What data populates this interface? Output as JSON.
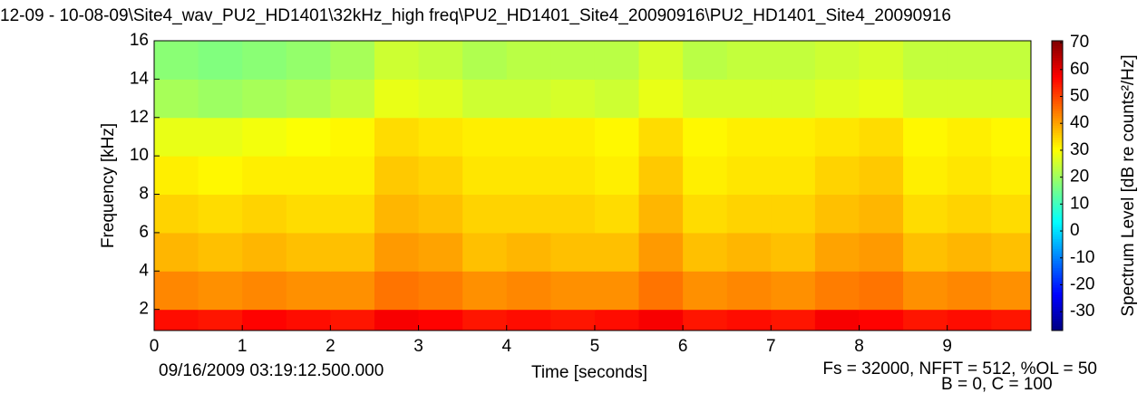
{
  "chart_data": {
    "type": "heatmap",
    "title": "12-09 - 10-08-09\\Site4_wav_PU2_HD1401\\32kHz_high freq\\PU2_HD1401_Site4_20090916\\PU2_HD1401_Site4_20090916",
    "xlabel": "Time [seconds]",
    "ylabel": "Frequency [kHz]",
    "colorbar_label": "Spectrum Level [dB re counts²/Hz]",
    "start_time": "09/16/2009 03:19:12.500.000",
    "params": "Fs = 32000, NFFT = 512, %OL = 50",
    "params2": "B = 0, C = 100",
    "xlim": [
      0,
      9.95
    ],
    "ylim": [
      0.9,
      16
    ],
    "clim": [
      -37,
      70.7
    ],
    "xticks": [
      0,
      1,
      2,
      3,
      4,
      5,
      6,
      7,
      8,
      9
    ],
    "yticks": [
      2,
      4,
      6,
      8,
      10,
      12,
      14,
      16
    ],
    "cticks": [
      -30,
      -20,
      -10,
      0,
      10,
      20,
      30,
      40,
      50,
      60,
      70
    ],
    "x_edges": [
      0,
      0.5,
      1,
      1.5,
      2,
      2.5,
      3,
      3.5,
      4,
      4.5,
      5,
      5.5,
      6,
      6.5,
      7,
      7.5,
      8,
      8.5,
      9,
      9.5,
      9.95
    ],
    "y_edges": [
      0.9,
      2,
      4,
      6,
      8,
      10,
      12,
      14,
      16
    ],
    "colormap": "jet",
    "z": [
      [
        56,
        55,
        57,
        56,
        55,
        58,
        57,
        55,
        56,
        55,
        56,
        58,
        55,
        56,
        55,
        58,
        57,
        55,
        56,
        55
      ],
      [
        43,
        42,
        43,
        42,
        42,
        45,
        44,
        42,
        43,
        42,
        42,
        45,
        42,
        43,
        42,
        44,
        45,
        42,
        43,
        42
      ],
      [
        38,
        37,
        38,
        37,
        37,
        41,
        40,
        37,
        38,
        37,
        37,
        41,
        37,
        38,
        37,
        40,
        41,
        37,
        38,
        37
      ],
      [
        35,
        34,
        35,
        34,
        34,
        38,
        37,
        35,
        35,
        35,
        34,
        38,
        34,
        35,
        35,
        37,
        38,
        34,
        35,
        34
      ],
      [
        32,
        31,
        32,
        32,
        32,
        36,
        35,
        33,
        33,
        33,
        32,
        36,
        32,
        33,
        33,
        35,
        36,
        32,
        33,
        32
      ],
      [
        28,
        28,
        29,
        30,
        31,
        34,
        33,
        32,
        32,
        32,
        31,
        34,
        31,
        32,
        32,
        33,
        34,
        31,
        32,
        31
      ],
      [
        21,
        20,
        21,
        22,
        24,
        28,
        27,
        25,
        25,
        26,
        25,
        28,
        26,
        26,
        26,
        27,
        28,
        26,
        26,
        26
      ],
      [
        18,
        17,
        18,
        19,
        21,
        25,
        24,
        22,
        23,
        23,
        23,
        26,
        23,
        24,
        24,
        25,
        26,
        24,
        24,
        24
      ]
    ]
  }
}
